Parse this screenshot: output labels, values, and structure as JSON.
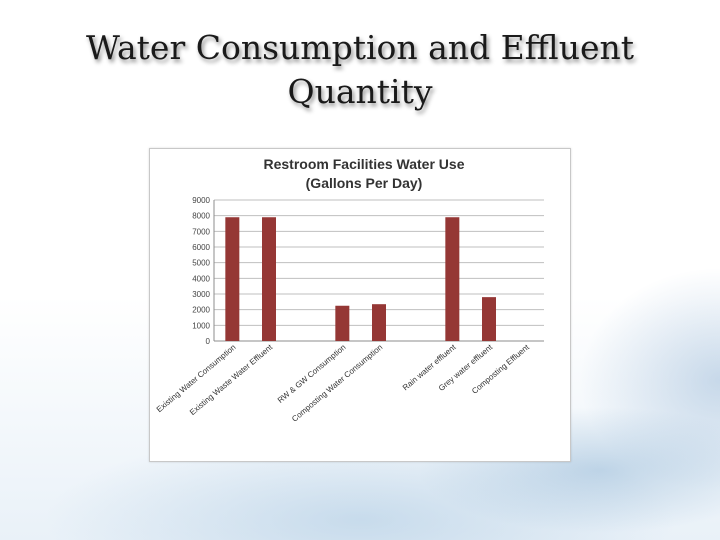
{
  "slide": {
    "title": "Water Consumption and Effluent Quantity"
  },
  "chart_data": {
    "type": "bar",
    "title": "Restroom Facilities Water Use",
    "subtitle": "(Gallons Per Day)",
    "xlabel": "",
    "ylabel": "",
    "ylim": [
      0,
      9000
    ],
    "yticks": [
      0,
      1000,
      2000,
      3000,
      4000,
      5000,
      6000,
      7000,
      8000,
      9000
    ],
    "grid": true,
    "legend": "none",
    "bar_color": "#953735",
    "categories": [
      "Existing Water Consumption",
      "Existing Waste Water Effluent",
      "",
      "RW & GW Consumption",
      "Composting Water Consumption",
      "",
      "Rain water effluent",
      "Grey water effluent",
      "Composting Effluent"
    ],
    "values": [
      7900,
      7900,
      null,
      2250,
      2350,
      null,
      7900,
      2800,
      0
    ]
  }
}
